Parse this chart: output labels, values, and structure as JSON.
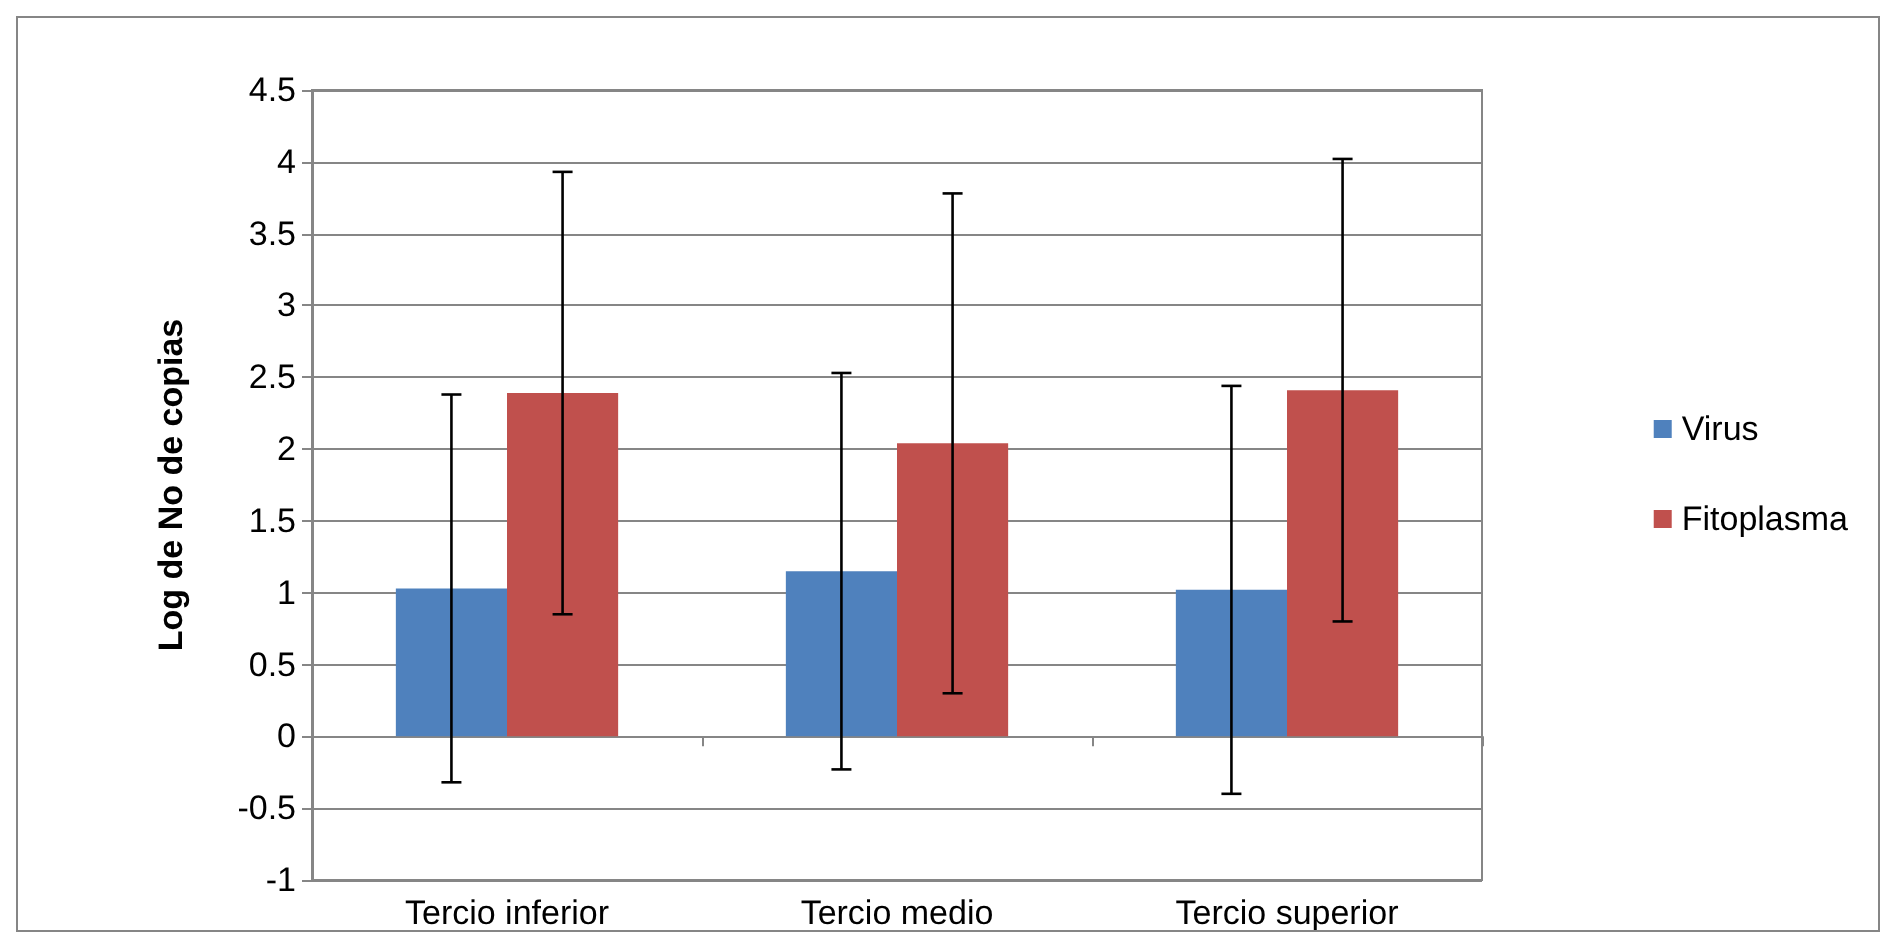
{
  "chart_data": {
    "type": "bar",
    "ylabel": "Log de No de copias",
    "categories": [
      "Tercio inferior",
      "Tercio medio",
      "Tercio superior"
    ],
    "series": [
      {
        "name": "Virus",
        "color": "#4f81bd",
        "values": [
          1.03,
          1.15,
          1.02
        ],
        "errors": [
          1.35,
          1.38,
          1.42
        ]
      },
      {
        "name": "Fitoplasma",
        "color": "#c0504d",
        "values": [
          2.39,
          2.04,
          2.41
        ],
        "errors": [
          1.54,
          1.74,
          1.61
        ]
      }
    ],
    "ylim": [
      -1,
      4.5
    ],
    "yticks": [
      -1,
      -0.5,
      0,
      0.5,
      1,
      1.5,
      2,
      2.5,
      3,
      3.5,
      4,
      4.5
    ],
    "grid": "y",
    "legend": "right"
  }
}
